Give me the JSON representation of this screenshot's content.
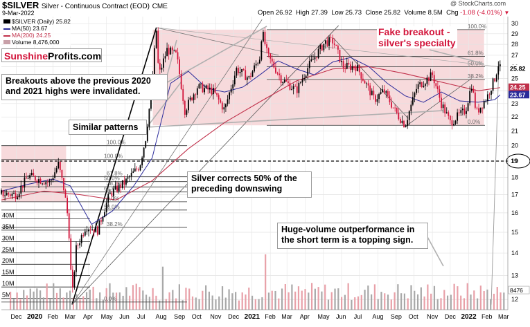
{
  "header": {
    "symbol": "$SILVER",
    "description": "Silver - Continuous Contract (EOD)",
    "exchange": "CME",
    "date": "9-Mar-2022",
    "watermark": "@ StockCharts.com",
    "quote": {
      "open_label": "Open",
      "open": "26.92",
      "high_label": "High",
      "high": "27.39",
      "low_label": "Low",
      "low": "25.73",
      "close_label": "Close",
      "close": "25.82",
      "volume_label": "Volume",
      "volume": "8.5M",
      "chg_label": "Chg",
      "chg": "-1.08 (-4.01%)"
    }
  },
  "legend": {
    "price": "$SILVER (Daily) 25.82",
    "ma50": "MA(50) 23.67",
    "ma200": "MA(200) 24.25",
    "volume": "Volume 8,476,000"
  },
  "brand": {
    "part1": "Sunshine",
    "part2": "Profits.com"
  },
  "annotations": {
    "fake_breakout_1": "Fake breakout -",
    "fake_breakout_2": "silver's specialty",
    "breakouts_1": "Breakouts above the previous 2020",
    "breakouts_2": "and 2021 highs were invalidated.",
    "similar": "Similar patterns",
    "corrects_1": "Silver corrects 50% of the",
    "corrects_2": "preceding downswing",
    "volume_1": "Huge-volume outperformance in",
    "volume_2": "the short term is a topping sign."
  },
  "colors": {
    "up_candle": "#000000",
    "down_candle": "#d2143a",
    "ma50": "#2a2a9a",
    "ma200": "#c0304a",
    "pink_zone": "#f6d3d6",
    "volume_bar": "#e8a0a8",
    "volume_bar_up": "#a8a8a8"
  },
  "chart_data": {
    "type": "candlestick",
    "x_axis": {
      "labels": [
        "Dec",
        "2020",
        "Feb",
        "Mar",
        "Apr",
        "May",
        "Jun",
        "Jul",
        "Aug",
        "Sep",
        "Oct",
        "Nov",
        "Dec",
        "2021",
        "Feb",
        "Mar",
        "Apr",
        "May",
        "Jun",
        "Jul",
        "Aug",
        "Sep",
        "Oct",
        "Nov",
        "Dec",
        "2022",
        "Feb",
        "Mar"
      ],
      "range": [
        "2019-11-20",
        "2022-03-22"
      ]
    },
    "y_axis": {
      "scale": "log",
      "ticks": [
        12,
        13,
        14,
        15,
        16,
        17,
        18,
        19,
        20,
        21,
        22,
        23,
        24,
        25,
        26,
        27,
        28,
        29,
        30
      ],
      "range": [
        11.6,
        30.7
      ]
    },
    "volume_axis": {
      "ticks": [
        "40M",
        "35M",
        "30M",
        "25M",
        "20M",
        "15M",
        "10M",
        "5M"
      ],
      "range": [
        0,
        45
      ]
    },
    "right_labels": {
      "last_price": "25.82",
      "ma200": "24.25",
      "ma50": "23.67",
      "level_19": "19",
      "volume": "8476"
    },
    "series": [
      {
        "name": "$SILVER (Daily)",
        "kind": "price",
        "points": [
          [
            "2019-11-20",
            17.05
          ],
          [
            "2019-12-15",
            17.0
          ],
          [
            "2020-01-05",
            18.1
          ],
          [
            "2020-01-20",
            17.9
          ],
          [
            "2020-02-10",
            17.7
          ],
          [
            "2020-02-24",
            18.8
          ],
          [
            "2020-03-05",
            17.2
          ],
          [
            "2020-03-12",
            15.5
          ],
          [
            "2020-03-18",
            12.0
          ],
          [
            "2020-03-25",
            14.2
          ],
          [
            "2020-04-10",
            15.3
          ],
          [
            "2020-04-30",
            15.1
          ],
          [
            "2020-05-20",
            17.0
          ],
          [
            "2020-06-15",
            17.7
          ],
          [
            "2020-07-10",
            18.7
          ],
          [
            "2020-07-20",
            20.5
          ],
          [
            "2020-07-30",
            24.0
          ],
          [
            "2020-08-07",
            29.3
          ],
          [
            "2020-08-11",
            25.2
          ],
          [
            "2020-08-25",
            27.5
          ],
          [
            "2020-09-10",
            27.0
          ],
          [
            "2020-09-24",
            22.5
          ],
          [
            "2020-10-15",
            24.3
          ],
          [
            "2020-11-10",
            24.0
          ],
          [
            "2020-11-30",
            22.5
          ],
          [
            "2020-12-20",
            25.8
          ],
          [
            "2021-01-10",
            25.0
          ],
          [
            "2021-01-28",
            26.8
          ],
          [
            "2021-02-01",
            29.3
          ],
          [
            "2021-02-10",
            27.0
          ],
          [
            "2021-03-05",
            25.0
          ],
          [
            "2021-03-31",
            24.0
          ],
          [
            "2021-04-20",
            26.0
          ],
          [
            "2021-05-18",
            28.2
          ],
          [
            "2021-06-01",
            28.3
          ],
          [
            "2021-06-17",
            26.0
          ],
          [
            "2021-07-10",
            26.0
          ],
          [
            "2021-08-09",
            23.3
          ],
          [
            "2021-08-25",
            24.0
          ],
          [
            "2021-09-15",
            22.3
          ],
          [
            "2021-09-30",
            21.4
          ],
          [
            "2021-10-20",
            24.3
          ],
          [
            "2021-11-15",
            25.3
          ],
          [
            "2021-11-30",
            23.0
          ],
          [
            "2021-12-15",
            21.6
          ],
          [
            "2022-01-10",
            22.5
          ],
          [
            "2022-01-20",
            24.5
          ],
          [
            "2022-01-28",
            22.3
          ],
          [
            "2022-02-15",
            23.5
          ],
          [
            "2022-02-28",
            25.0
          ],
          [
            "2022-03-07",
            26.4
          ],
          [
            "2022-03-09",
            25.82
          ]
        ]
      },
      {
        "name": "MA(50)",
        "kind": "line",
        "points": [
          [
            "2019-11-20",
            17.2
          ],
          [
            "2020-01-05",
            17.6
          ],
          [
            "2020-02-15",
            17.9
          ],
          [
            "2020-03-15",
            17.5
          ],
          [
            "2020-04-20",
            15.4
          ],
          [
            "2020-05-25",
            16.1
          ],
          [
            "2020-06-30",
            17.5
          ],
          [
            "2020-07-31",
            19.2
          ],
          [
            "2020-08-31",
            24.6
          ],
          [
            "2020-09-30",
            25.6
          ],
          [
            "2020-10-31",
            24.2
          ],
          [
            "2020-11-30",
            23.9
          ],
          [
            "2020-12-31",
            24.3
          ],
          [
            "2021-01-31",
            25.4
          ],
          [
            "2021-02-28",
            26.5
          ],
          [
            "2021-03-31",
            25.8
          ],
          [
            "2021-04-30",
            25.3
          ],
          [
            "2021-05-31",
            26.4
          ],
          [
            "2021-06-30",
            26.8
          ],
          [
            "2021-07-31",
            26.0
          ],
          [
            "2021-08-31",
            24.6
          ],
          [
            "2021-09-30",
            23.6
          ],
          [
            "2021-10-31",
            23.1
          ],
          [
            "2021-11-30",
            23.9
          ],
          [
            "2021-12-31",
            23.2
          ],
          [
            "2022-01-31",
            23.1
          ],
          [
            "2022-02-28",
            23.3
          ],
          [
            "2022-03-09",
            23.67
          ]
        ]
      },
      {
        "name": "MA(200)",
        "kind": "line",
        "points": [
          [
            "2019-11-20",
            16.7
          ],
          [
            "2020-01-31",
            17.2
          ],
          [
            "2020-03-31",
            17.0
          ],
          [
            "2020-05-31",
            16.7
          ],
          [
            "2020-07-31",
            17.8
          ],
          [
            "2020-09-30",
            19.8
          ],
          [
            "2020-11-30",
            21.6
          ],
          [
            "2021-01-31",
            23.2
          ],
          [
            "2021-03-31",
            24.8
          ],
          [
            "2021-05-31",
            25.8
          ],
          [
            "2021-07-31",
            26.0
          ],
          [
            "2021-09-30",
            25.4
          ],
          [
            "2021-11-30",
            24.7
          ],
          [
            "2022-01-31",
            24.0
          ],
          [
            "2022-03-09",
            24.25
          ]
        ]
      }
    ],
    "fib_sets": [
      {
        "name": "2020 retracement",
        "levels": [
          {
            "label": "100.0%",
            "value": 20.0
          },
          {
            "label": "100.0%",
            "value": 19.1
          },
          {
            "label": "61.8%",
            "value": 18.05
          },
          {
            "label": "50.0%",
            "value": 17.75
          },
          {
            "label": "38.2%",
            "value": 17.45
          },
          {
            "label": "61.8%",
            "value": 17.15
          },
          {
            "label": "0.0%",
            "value": 16.6
          },
          {
            "label": "50.0%",
            "value": 16.15
          },
          {
            "label": "38.2%",
            "value": 15.25
          },
          {
            "label": "0.0%",
            "value": 11.9
          }
        ]
      },
      {
        "name": "2021-2022 retracement",
        "levels": [
          {
            "label": "100.0%",
            "value": 29.4
          },
          {
            "label": "61.8%",
            "value": 26.9
          },
          {
            "label": "50.0%",
            "value": 26.0
          },
          {
            "label": "38.2%",
            "value": 24.9
          },
          {
            "label": "0.0%",
            "value": 21.4
          }
        ]
      }
    ],
    "horizontal_levels": [
      {
        "value": 19.0,
        "style": "dashed"
      }
    ],
    "volume_approx": {
      "typical_M": [
        4,
        12
      ],
      "spikes": [
        {
          "date": "2020-08-07",
          "M": 21
        },
        {
          "date": "2021-02-01",
          "M": 30
        },
        {
          "date": "2022-03-07",
          "M": 14
        }
      ]
    },
    "pink_zones": [
      {
        "from": "2019-11-20",
        "to": "2020-03-08",
        "low": 16.6,
        "high": 20.0
      },
      {
        "from": "2020-08-01",
        "to": "2022-02-10",
        "low": 21.4,
        "high": 29.4
      }
    ],
    "legend_position": "top-left",
    "grid": true
  }
}
